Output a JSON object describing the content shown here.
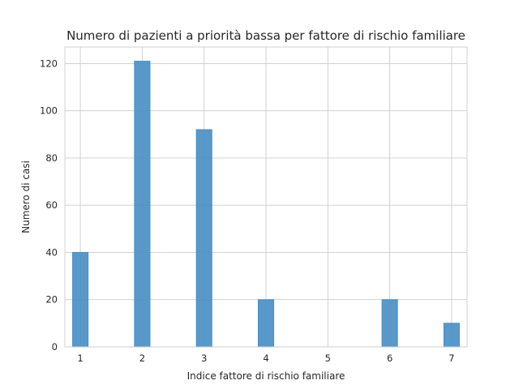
{
  "chart_data": {
    "type": "bar",
    "title": "Numero di pazienti a priorità bassa per fattore di rischio familiare",
    "xlabel": "Indice fattore di rischio familiare",
    "ylabel": "Numero di casi",
    "x_ticks": [
      1,
      2,
      3,
      4,
      5,
      6,
      7
    ],
    "y_ticks": [
      0,
      20,
      40,
      60,
      80,
      100,
      120
    ],
    "xlim": [
      0.75,
      7.25
    ],
    "ylim": [
      0,
      127
    ],
    "bar_width": 0.25,
    "grid": true,
    "colors": {
      "bar": "#4a90c4"
    },
    "bars": [
      {
        "x": 1,
        "value": 40
      },
      {
        "x": 2,
        "value": 121
      },
      {
        "x": 3,
        "value": 92
      },
      {
        "x": 4,
        "value": 20
      },
      {
        "x": 6,
        "value": 20
      },
      {
        "x": 7,
        "value": 10
      }
    ]
  }
}
